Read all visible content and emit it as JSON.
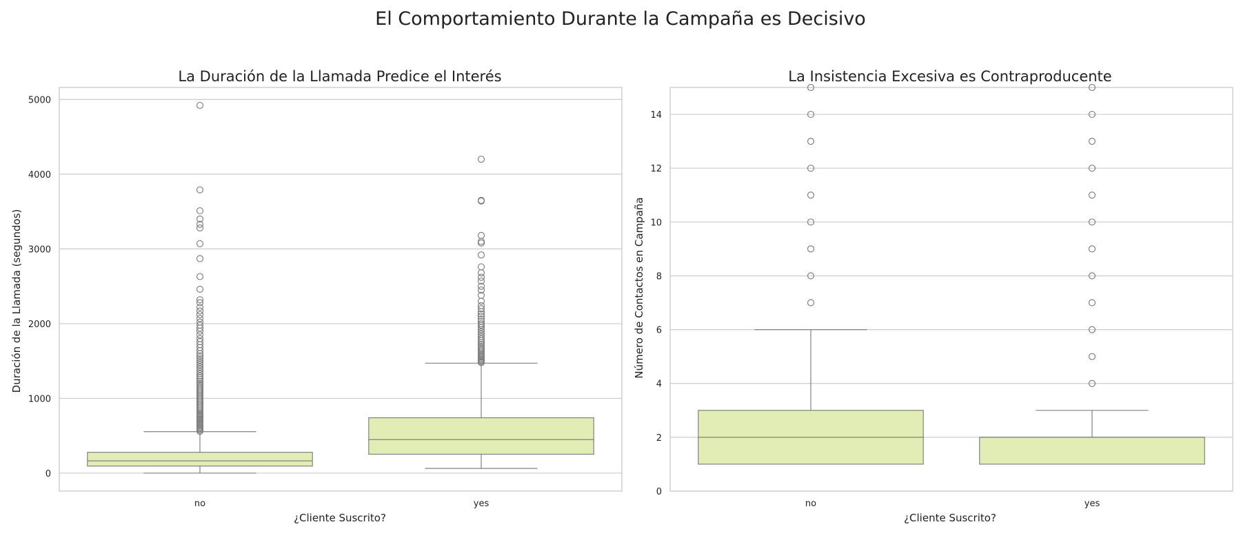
{
  "suptitle": "El Comportamiento Durante la Campaña es Decisivo",
  "colors": {
    "box_fill": "#e2edb5",
    "box_edge": "#808080",
    "grid": "#cccccc",
    "spine": "#cccccc"
  },
  "chart_data": [
    {
      "type": "box",
      "title": "La Duración de la Llamada Predice el Interés",
      "xlabel": "¿Cliente Suscrito?",
      "ylabel": "Duración de la Llamada (segundos)",
      "ylim": [
        -240,
        5160
      ],
      "yticks": [
        0,
        1000,
        2000,
        3000,
        4000,
        5000
      ],
      "categories": [
        "no",
        "yes"
      ],
      "boxes": [
        {
          "category": "no",
          "whisker_low": 0,
          "q1": 95,
          "median": 164,
          "q3": 279,
          "whisker_high": 555,
          "outliers": [
            560,
            575,
            590,
            605,
            620,
            635,
            650,
            665,
            680,
            695,
            710,
            725,
            740,
            755,
            770,
            785,
            800,
            820,
            840,
            860,
            880,
            900,
            920,
            940,
            960,
            980,
            1000,
            1020,
            1040,
            1060,
            1080,
            1100,
            1120,
            1140,
            1160,
            1180,
            1200,
            1225,
            1250,
            1275,
            1300,
            1330,
            1360,
            1390,
            1420,
            1450,
            1480,
            1510,
            1540,
            1570,
            1600,
            1640,
            1680,
            1720,
            1760,
            1800,
            1850,
            1900,
            1940,
            1980,
            2020,
            2070,
            2120,
            2170,
            2220,
            2280,
            2320,
            2460,
            2630,
            2870,
            3070,
            3280,
            3330,
            3400,
            3510,
            3790,
            4920
          ]
        },
        {
          "category": "yes",
          "whisker_low": 63,
          "q1": 253,
          "median": 449,
          "q3": 741,
          "whisker_high": 1471,
          "outliers": [
            1480,
            1495,
            1510,
            1525,
            1540,
            1555,
            1570,
            1585,
            1600,
            1620,
            1640,
            1660,
            1680,
            1700,
            1725,
            1750,
            1775,
            1800,
            1830,
            1860,
            1890,
            1920,
            1950,
            1980,
            2000,
            2030,
            2060,
            2100,
            2130,
            2160,
            2200,
            2240,
            2300,
            2380,
            2450,
            2500,
            2570,
            2620,
            2680,
            2760,
            2920,
            3080,
            3100,
            3180,
            3640,
            3650,
            4200
          ]
        }
      ]
    },
    {
      "type": "box",
      "title": "La Insistencia Excesiva es Contraproducente",
      "xlabel": "¿Cliente Suscrito?",
      "ylabel": "Número de Contactos en Campaña",
      "ylim": [
        0,
        15
      ],
      "yticks": [
        0,
        2,
        4,
        6,
        8,
        10,
        12,
        14
      ],
      "categories": [
        "no",
        "yes"
      ],
      "boxes": [
        {
          "category": "no",
          "whisker_low": 1,
          "q1": 1,
          "median": 2,
          "q3": 3,
          "whisker_high": 6,
          "outliers": [
            7,
            8,
            9,
            10,
            11,
            12,
            13,
            14,
            15
          ]
        },
        {
          "category": "yes",
          "whisker_low": 1,
          "q1": 1,
          "median": 2,
          "q3": 2,
          "whisker_high": 3,
          "outliers": [
            4,
            5,
            6,
            7,
            8,
            9,
            10,
            11,
            12,
            13,
            14,
            15
          ]
        }
      ]
    }
  ]
}
